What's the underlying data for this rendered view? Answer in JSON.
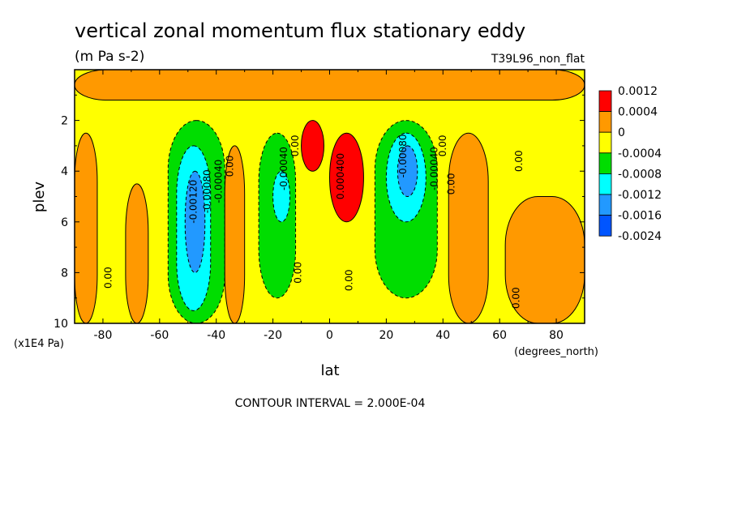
{
  "chart_data": {
    "type": "heatmap",
    "title": "vertical zonal momentum flux stationary eddy",
    "units": "(m Pa s-2)",
    "dataset": "T39L96_non_flat",
    "xlabel": "lat",
    "x_units": "(degrees_north)",
    "ylabel": "plev",
    "y_units": "(x1E4 Pa)",
    "contour_interval": "CONTOUR INTERVAL = 2.000E-04",
    "xlim": [
      -90,
      90
    ],
    "ylim": [
      10,
      0
    ],
    "x_ticks": [
      -80,
      -60,
      -40,
      -20,
      0,
      20,
      40,
      60,
      80
    ],
    "y_ticks": [
      2,
      4,
      6,
      8,
      10
    ],
    "colorbar": {
      "labels": [
        "0.0012",
        "0.0004",
        "0",
        "-0.0004",
        "-0.0008",
        "-0.0012",
        "-0.0016",
        "-0.0024"
      ],
      "colors": [
        "#ff0000",
        "#ff9900",
        "#ffff00",
        "#00dd00",
        "#00ffff",
        "#2299ff",
        "#0055ff"
      ]
    },
    "contour_labels": [
      {
        "text": "0.00",
        "lat": -77,
        "plev": 8.2
      },
      {
        "text": "-0.00120",
        "lat": -47,
        "plev": 5.2
      },
      {
        "text": "-0.00080",
        "lat": -42,
        "plev": 4.8
      },
      {
        "text": "-0.00040",
        "lat": -38,
        "plev": 4.4
      },
      {
        "text": "0.00",
        "lat": -34,
        "plev": 3.8
      },
      {
        "text": "-0.00040",
        "lat": -15,
        "plev": 3.9
      },
      {
        "text": "0.00",
        "lat": -10,
        "plev": 8.0
      },
      {
        "text": "0.00",
        "lat": -11,
        "plev": 3.0
      },
      {
        "text": "0.000400",
        "lat": 5,
        "plev": 4.2
      },
      {
        "text": "0.00",
        "lat": 8,
        "plev": 8.3
      },
      {
        "text": "-0.00080",
        "lat": 27,
        "plev": 3.4
      },
      {
        "text": "-0.00040",
        "lat": 38,
        "plev": 3.9
      },
      {
        "text": "0.00",
        "lat": 41,
        "plev": 3.0
      },
      {
        "text": "0.00",
        "lat": 44,
        "plev": 4.5
      },
      {
        "text": "0.00",
        "lat": 68,
        "plev": 3.6
      },
      {
        "text": "0.00",
        "lat": 67,
        "plev": 9.0
      }
    ],
    "regions": [
      {
        "level": "positive",
        "lat": [
          -90,
          90
        ],
        "plev": [
          0,
          1.2
        ]
      },
      {
        "level": "positive",
        "lat": [
          -90,
          -82
        ],
        "plev": [
          2.5,
          10
        ]
      },
      {
        "level": "positive",
        "lat": [
          -72,
          -64
        ],
        "plev": [
          4.5,
          10
        ]
      },
      {
        "level": "negative_weak",
        "lat": [
          -57,
          -37
        ],
        "plev": [
          2,
          10
        ]
      },
      {
        "level": "negative_moderate",
        "lat": [
          -54,
          -42
        ],
        "plev": [
          3,
          9.5
        ]
      },
      {
        "level": "negative_strong",
        "lat": [
          -51,
          -44
        ],
        "plev": [
          4,
          8
        ]
      },
      {
        "level": "positive",
        "lat": [
          -37,
          -30
        ],
        "plev": [
          3,
          10
        ]
      },
      {
        "level": "negative_weak",
        "lat": [
          -25,
          -12
        ],
        "plev": [
          2.5,
          9
        ]
      },
      {
        "level": "negative_moderate",
        "lat": [
          -20,
          -14
        ],
        "plev": [
          4,
          6
        ]
      },
      {
        "level": "positive_strong",
        "lat": [
          -10,
          -2
        ],
        "plev": [
          2,
          4
        ]
      },
      {
        "level": "positive_strong",
        "lat": [
          0,
          12
        ],
        "plev": [
          2.5,
          6
        ]
      },
      {
        "level": "negative_weak",
        "lat": [
          16,
          38
        ],
        "plev": [
          2,
          9
        ]
      },
      {
        "level": "negative_moderate",
        "lat": [
          20,
          34
        ],
        "plev": [
          2.5,
          6
        ]
      },
      {
        "level": "negative_strong",
        "lat": [
          24,
          31
        ],
        "plev": [
          3,
          5
        ]
      },
      {
        "level": "positive",
        "lat": [
          42,
          56
        ],
        "plev": [
          2.5,
          10
        ]
      },
      {
        "level": "positive",
        "lat": [
          62,
          90
        ],
        "plev": [
          5,
          10
        ]
      }
    ]
  }
}
